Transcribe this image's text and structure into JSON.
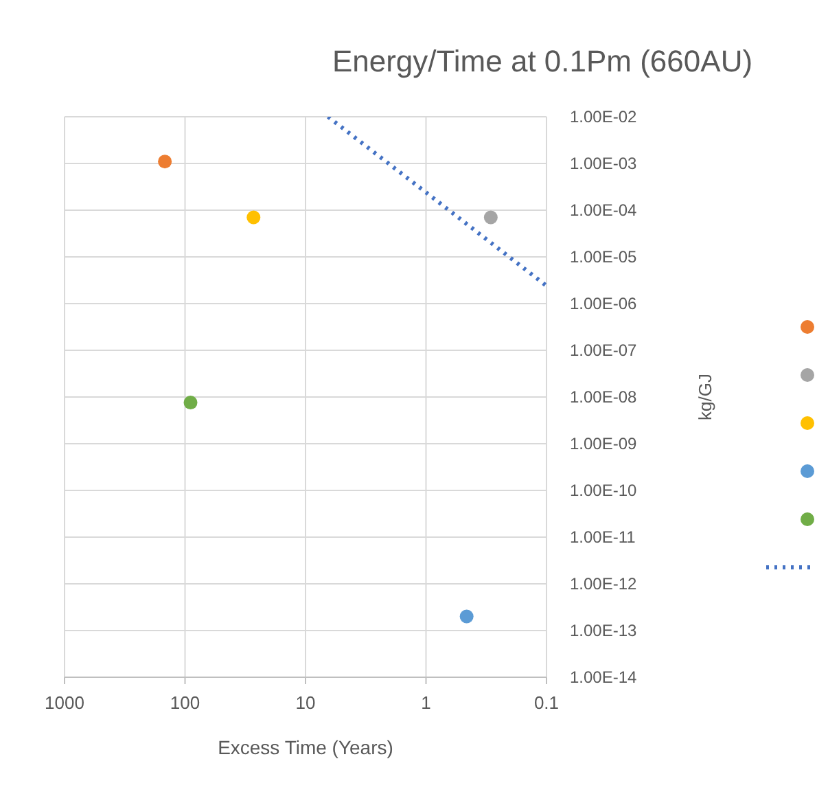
{
  "chart_data": {
    "type": "scatter",
    "title": "Energy/Time at 0.1Pm (660AU)",
    "xlabel": "Excess Time (Years)",
    "ylabel": "kg/GJ",
    "log": "xy",
    "grid": true,
    "marker": "circle",
    "xlim": [
      1000,
      0.1
    ],
    "xticks": [
      1000,
      100,
      10,
      1,
      0.1
    ],
    "ylim": [
      1e-14,
      0.01
    ],
    "yticks": [
      {
        "value": 1e-14,
        "label": "1.00E-14"
      },
      {
        "value": 1e-13,
        "label": "1.00E-13"
      },
      {
        "value": 1e-12,
        "label": "1.00E-12"
      },
      {
        "value": 1e-11,
        "label": "1.00E-11"
      },
      {
        "value": 1e-10,
        "label": "1.00E-10"
      },
      {
        "value": 1e-09,
        "label": "1.00E-09"
      },
      {
        "value": 1e-08,
        "label": "1.00E-08"
      },
      {
        "value": 1e-07,
        "label": "1.00E-07"
      },
      {
        "value": 1e-06,
        "label": "1.00E-06"
      },
      {
        "value": 1e-05,
        "label": "1.00E-05"
      },
      {
        "value": 0.0001,
        "label": "1.00E-04"
      },
      {
        "value": 0.001,
        "label": "1.00E-03"
      },
      {
        "value": 0.01,
        "label": "1.00E-02"
      }
    ],
    "series": [
      {
        "color": "#ed7d31",
        "x": [
          147
        ],
        "values": [
          0.0011
        ]
      },
      {
        "color": "#a5a5a5",
        "x": [
          0.29
        ],
        "values": [
          7e-05
        ]
      },
      {
        "color": "#ffc000",
        "x": [
          27
        ],
        "values": [
          7e-05
        ]
      },
      {
        "color": "#5b9bd5",
        "x": [
          0.46
        ],
        "values": [
          2e-13
        ]
      },
      {
        "color": "#70ad47",
        "x": [
          90
        ],
        "values": [
          7.6e-09
        ]
      },
      {
        "type": "line",
        "color": "#4472c4",
        "marker": "none",
        "line_style": "dotted",
        "x": [
          6.5,
          1,
          0.1
        ],
        "values": [
          0.01,
          0.00024,
          2.4e-06
        ]
      }
    ]
  }
}
